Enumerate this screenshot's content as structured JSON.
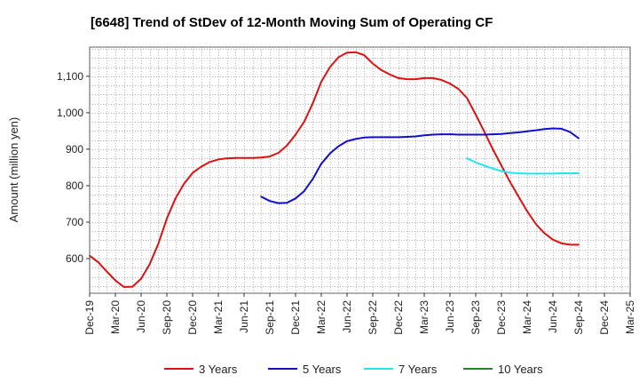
{
  "chart_data": {
    "type": "line",
    "title": "[6648]  Trend of StDev of 12-Month Moving Sum of Operating CF",
    "xlabel": "",
    "ylabel": "Amount (million yen)",
    "ylim": [
      505,
      1180
    ],
    "yticks": [
      600,
      700,
      800,
      900,
      1000,
      1100
    ],
    "ytick_labels": [
      "600",
      "700",
      "800",
      "900",
      "1,000",
      "1,100"
    ],
    "xlim": [
      "2019-12",
      "2025-03"
    ],
    "xtick_labels": [
      "Dec-19",
      "Mar-20",
      "Jun-20",
      "Sep-20",
      "Dec-20",
      "Mar-21",
      "Jun-21",
      "Sep-21",
      "Dec-21",
      "Mar-22",
      "Jun-22",
      "Sep-22",
      "Dec-22",
      "Mar-23",
      "Jun-23",
      "Sep-23",
      "Dec-23",
      "Mar-24",
      "Jun-24",
      "Sep-24",
      "Dec-24",
      "Mar-25"
    ],
    "grid": true,
    "legend_position": "bottom",
    "series": [
      {
        "name": "3 Years",
        "color": "#dd1111",
        "x": [
          "2019-12",
          "2020-01",
          "2020-02",
          "2020-03",
          "2020-04",
          "2020-05",
          "2020-06",
          "2020-07",
          "2020-08",
          "2020-09",
          "2020-10",
          "2020-11",
          "2020-12",
          "2021-01",
          "2021-02",
          "2021-03",
          "2021-04",
          "2021-05",
          "2021-06",
          "2021-07",
          "2021-08",
          "2021-09",
          "2021-10",
          "2021-11",
          "2021-12",
          "2022-01",
          "2022-02",
          "2022-03",
          "2022-04",
          "2022-05",
          "2022-06",
          "2022-07",
          "2022-08",
          "2022-09",
          "2022-10",
          "2022-11",
          "2022-12",
          "2023-01",
          "2023-02",
          "2023-03",
          "2023-04",
          "2023-05",
          "2023-06",
          "2023-07",
          "2023-08",
          "2023-09",
          "2023-10",
          "2023-11",
          "2023-12",
          "2024-01",
          "2024-02",
          "2024-03",
          "2024-04",
          "2024-05",
          "2024-06",
          "2024-07",
          "2024-08",
          "2024-09"
        ],
        "values": [
          608,
          590,
          565,
          540,
          522,
          523,
          545,
          585,
          640,
          710,
          765,
          805,
          835,
          852,
          865,
          872,
          875,
          876,
          876,
          876,
          877,
          880,
          890,
          910,
          940,
          975,
          1025,
          1085,
          1125,
          1152,
          1165,
          1166,
          1158,
          1135,
          1117,
          1105,
          1095,
          1092,
          1092,
          1095,
          1095,
          1090,
          1080,
          1065,
          1040,
          995,
          948,
          900,
          855,
          810,
          770,
          730,
          695,
          670,
          652,
          642,
          638,
          638
        ]
      },
      {
        "name": "5 Years",
        "color": "#1111cc",
        "x": [
          "2021-08",
          "2021-09",
          "2021-10",
          "2021-11",
          "2021-12",
          "2022-01",
          "2022-02",
          "2022-03",
          "2022-04",
          "2022-05",
          "2022-06",
          "2022-07",
          "2022-08",
          "2022-09",
          "2022-10",
          "2022-11",
          "2022-12",
          "2023-01",
          "2023-02",
          "2023-03",
          "2023-04",
          "2023-05",
          "2023-06",
          "2023-07",
          "2023-08",
          "2023-09",
          "2023-10",
          "2023-11",
          "2023-12",
          "2024-01",
          "2024-02",
          "2024-03",
          "2024-04",
          "2024-05",
          "2024-06",
          "2024-07",
          "2024-08",
          "2024-09"
        ],
        "values": [
          770,
          758,
          752,
          753,
          765,
          785,
          818,
          860,
          888,
          908,
          922,
          928,
          932,
          933,
          933,
          933,
          933,
          934,
          935,
          938,
          940,
          941,
          941,
          940,
          940,
          940,
          940,
          941,
          942,
          944,
          946,
          949,
          952,
          955,
          957,
          956,
          947,
          930
        ]
      },
      {
        "name": "7 Years",
        "color": "#22e5ee",
        "x": [
          "2023-08",
          "2023-09",
          "2023-10",
          "2023-11",
          "2023-12",
          "2024-01",
          "2024-02",
          "2024-03",
          "2024-04",
          "2024-05",
          "2024-06",
          "2024-07",
          "2024-08",
          "2024-09"
        ],
        "values": [
          875,
          864,
          855,
          847,
          840,
          836,
          834,
          833,
          833,
          833,
          833,
          834,
          834,
          834
        ]
      },
      {
        "name": "10 Years",
        "color": "#228822",
        "x": [],
        "values": []
      }
    ]
  }
}
